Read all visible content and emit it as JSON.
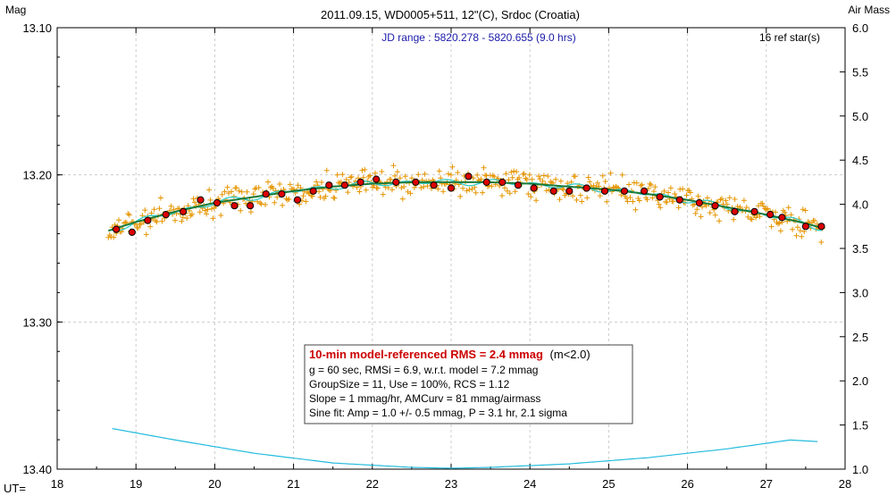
{
  "chart_data": {
    "type": "scatter",
    "title": "2011.09.15, WD0005+511, 12\"(C), Srdoc (Croatia)",
    "subtitle": "JD range : 5820.278 - 5820.655 (9.0 hrs)",
    "ref_stars": "16 ref star(s)",
    "ylabel_left": "Mag",
    "ylabel_right": "Air Mass",
    "xlabel": "UT=",
    "xlim": [
      18,
      28
    ],
    "ylim_left": [
      13.4,
      13.1
    ],
    "ylim_right": [
      1.0,
      6.0
    ],
    "grid": true,
    "x_ticks": [
      "18",
      "19",
      "20",
      "21",
      "22",
      "23",
      "24",
      "25",
      "26",
      "27",
      "28"
    ],
    "y_ticks_left": [
      "13.10",
      "13.20",
      "13.30",
      "13.40"
    ],
    "y_ticks_right": [
      "6.0",
      "5.5",
      "5.0",
      "4.5",
      "4.0",
      "3.5",
      "3.0",
      "2.5",
      "2.0",
      "1.5",
      "1.0"
    ],
    "colors": {
      "raw_points": "#e69500",
      "binned_fill": "#dd0000",
      "model_curve": "#1a7a3a",
      "sine_curve": "#33cccc",
      "airmass_curve": "#22bbdd",
      "grid": "#cccccc",
      "subtitle": "#1a1aaa",
      "rms_text": "#cc0000"
    },
    "stats_box": {
      "line1_red": "10-min model-referenced RMS = 2.4 mmag",
      "line1_black": "(m<2.0)",
      "line2": "g = 60 sec, RMSi = 6.9, w.r.t. model = 7.2 mmag",
      "line3": "GroupSize = 11, Use = 100%, RCS = 1.12",
      "line4": "Slope = 1 mmag/hr, AMCurv = 81 mmag/airmass",
      "line5": "Sine fit: Amp = 1.0 +/- 0.5 mmag, P = 3.1 hr, 2.1 sigma"
    },
    "series": [
      {
        "kind": "binned",
        "x": [
          18.75,
          18.95,
          19.15,
          19.38,
          19.6,
          19.82,
          20.03,
          20.25,
          20.45,
          20.65,
          20.85,
          21.05,
          21.25,
          21.45,
          21.65,
          21.85,
          22.05,
          22.3,
          22.55,
          22.78,
          23.0,
          23.22,
          23.45,
          23.65,
          23.85,
          24.05,
          24.3,
          24.5,
          24.72,
          24.95,
          25.2,
          25.45,
          25.65,
          25.9,
          26.15,
          26.35,
          26.6,
          26.85,
          27.05,
          27.2,
          27.5,
          27.7
        ],
        "y": [
          13.237,
          13.239,
          13.231,
          13.227,
          13.225,
          13.217,
          13.219,
          13.221,
          13.221,
          13.213,
          13.213,
          13.217,
          13.211,
          13.207,
          13.207,
          13.205,
          13.203,
          13.205,
          13.205,
          13.207,
          13.209,
          13.201,
          13.205,
          13.205,
          13.207,
          13.209,
          13.211,
          13.211,
          13.209,
          13.211,
          13.211,
          13.211,
          13.215,
          13.217,
          13.219,
          13.221,
          13.225,
          13.225,
          13.227,
          13.229,
          13.235,
          13.235
        ]
      },
      {
        "kind": "model",
        "x": [
          18.65,
          19.0,
          19.5,
          20.0,
          20.5,
          21.0,
          21.5,
          22.0,
          22.5,
          23.0,
          23.5,
          24.0,
          24.5,
          25.0,
          25.5,
          26.0,
          26.5,
          27.0,
          27.5,
          27.7
        ],
        "y": [
          13.238,
          13.232,
          13.225,
          13.219,
          13.215,
          13.211,
          13.208,
          13.206,
          13.205,
          13.205,
          13.205,
          13.206,
          13.208,
          13.21,
          13.213,
          13.217,
          13.222,
          13.227,
          13.233,
          13.236
        ]
      },
      {
        "kind": "airmass",
        "x": [
          18.7,
          19.5,
          20.5,
          21.5,
          22.5,
          23.0,
          23.5,
          24.5,
          25.5,
          26.5,
          27.3,
          27.7
        ],
        "y": [
          1.46,
          1.33,
          1.18,
          1.07,
          1.02,
          1.01,
          1.02,
          1.06,
          1.13,
          1.23,
          1.33,
          1.31
        ]
      }
    ]
  }
}
